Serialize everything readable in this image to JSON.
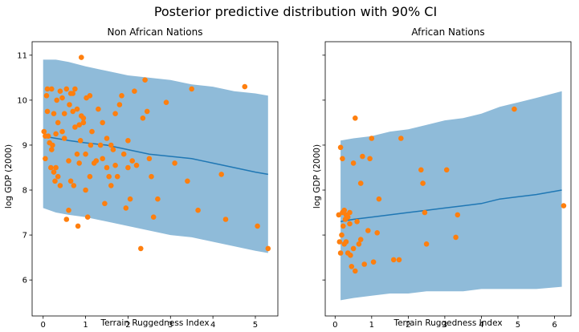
{
  "suptitle": "Posterior predictive distribution with 90% CI",
  "colors": {
    "band": "#1f77b4",
    "mean": "#1f77b4",
    "points": "#ff7f0e",
    "axis": "#000000"
  },
  "chart_data": [
    {
      "type": "scatter",
      "title": "Non African Nations",
      "xlabel": "Terrain Ruggedness Index",
      "ylabel": "log GDP (2000)",
      "xlim": [
        -0.26,
        5.53
      ],
      "ylim": [
        5.2,
        11.3
      ],
      "xticks": [
        0,
        1,
        2,
        3,
        4,
        5
      ],
      "yticks": [
        6,
        7,
        8,
        9,
        10,
        11
      ],
      "series": [
        {
          "kind": "ci_band",
          "x": [
            0.0,
            0.3,
            0.6,
            1.0,
            1.5,
            2.0,
            2.5,
            3.0,
            3.5,
            4.0,
            4.5,
            5.0,
            5.3
          ],
          "lower": [
            7.6,
            7.5,
            7.45,
            7.4,
            7.3,
            7.2,
            7.1,
            7.0,
            6.95,
            6.85,
            6.75,
            6.65,
            6.6
          ],
          "upper": [
            10.9,
            10.9,
            10.85,
            10.75,
            10.65,
            10.55,
            10.5,
            10.45,
            10.35,
            10.3,
            10.2,
            10.15,
            10.1
          ]
        },
        {
          "kind": "mean_line",
          "x": [
            0.0,
            0.3,
            0.6,
            1.0,
            1.5,
            2.0,
            2.5,
            3.0,
            3.5,
            4.0,
            4.5,
            5.0,
            5.3
          ],
          "y": [
            9.2,
            9.15,
            9.1,
            9.05,
            9.0,
            8.9,
            8.8,
            8.75,
            8.7,
            8.6,
            8.5,
            8.4,
            8.35
          ]
        },
        {
          "kind": "points",
          "x": [
            0.02,
            0.05,
            0.05,
            0.08,
            0.1,
            0.1,
            0.12,
            0.15,
            0.18,
            0.2,
            0.2,
            0.22,
            0.25,
            0.25,
            0.28,
            0.3,
            0.3,
            0.32,
            0.35,
            0.35,
            0.4,
            0.4,
            0.45,
            0.45,
            0.5,
            0.5,
            0.55,
            0.55,
            0.6,
            0.6,
            0.62,
            0.65,
            0.65,
            0.7,
            0.7,
            0.72,
            0.75,
            0.75,
            0.8,
            0.8,
            0.82,
            0.85,
            0.85,
            0.88,
            0.9,
            0.9,
            0.95,
            0.95,
            1.0,
            1.0,
            1.02,
            1.05,
            1.1,
            1.1,
            1.12,
            1.15,
            1.2,
            1.25,
            1.3,
            1.35,
            1.4,
            1.4,
            1.45,
            1.5,
            1.5,
            1.55,
            1.6,
            1.6,
            1.65,
            1.7,
            1.7,
            1.75,
            1.8,
            1.85,
            1.9,
            1.95,
            2.0,
            2.0,
            2.05,
            2.1,
            2.15,
            2.2,
            2.3,
            2.35,
            2.4,
            2.45,
            2.5,
            2.55,
            2.6,
            2.7,
            2.9,
            3.1,
            3.4,
            3.5,
            3.65,
            4.2,
            4.3,
            4.75,
            5.05,
            5.3
          ],
          "y": [
            9.3,
            8.7,
            9.2,
            10.1,
            9.75,
            10.25,
            9.2,
            9.05,
            8.5,
            8.9,
            10.25,
            9.0,
            8.4,
            9.7,
            8.2,
            8.5,
            9.25,
            10.0,
            8.3,
            9.5,
            8.1,
            10.2,
            9.3,
            10.05,
            9.15,
            9.7,
            7.35,
            10.25,
            7.55,
            8.65,
            9.9,
            8.2,
            10.15,
            9.75,
            10.15,
            8.1,
            9.4,
            10.25,
            8.8,
            9.8,
            7.2,
            8.6,
            9.45,
            9.1,
            9.65,
            10.95,
            9.5,
            9.6,
            8.0,
            8.8,
            10.05,
            7.4,
            10.1,
            8.3,
            9.0,
            9.3,
            8.6,
            8.65,
            9.8,
            9.0,
            8.7,
            9.5,
            7.7,
            8.5,
            9.15,
            8.3,
            8.1,
            9.0,
            8.9,
            8.55,
            9.7,
            8.3,
            9.9,
            10.1,
            8.8,
            7.6,
            8.5,
            9.1,
            7.8,
            8.65,
            10.2,
            8.55,
            6.7,
            9.6,
            10.45,
            9.75,
            8.7,
            8.3,
            7.4,
            7.8,
            9.95,
            8.6,
            8.2,
            10.25,
            7.55,
            8.35,
            7.35,
            10.3,
            7.2,
            6.7
          ]
        }
      ]
    },
    {
      "type": "scatter",
      "title": "African Nations",
      "xlabel": "Terrain Ruggedness Index",
      "ylabel": "log GDP (2000)",
      "xlim": [
        -0.27,
        6.45
      ],
      "ylim": [
        5.2,
        11.3
      ],
      "xticks": [
        0,
        1,
        2,
        3,
        4,
        5,
        6
      ],
      "yticks": [
        6,
        7,
        8,
        9,
        10,
        11
      ],
      "series": [
        {
          "kind": "ci_band",
          "x": [
            0.15,
            0.5,
            1.0,
            1.5,
            2.0,
            2.5,
            3.0,
            3.5,
            4.0,
            4.5,
            5.0,
            5.5,
            6.2
          ],
          "lower": [
            5.55,
            5.6,
            5.65,
            5.7,
            5.7,
            5.75,
            5.75,
            5.75,
            5.8,
            5.8,
            5.8,
            5.8,
            5.85
          ],
          "upper": [
            9.1,
            9.15,
            9.2,
            9.3,
            9.35,
            9.45,
            9.55,
            9.6,
            9.7,
            9.85,
            9.95,
            10.05,
            10.2
          ]
        },
        {
          "kind": "mean_line",
          "x": [
            0.15,
            0.5,
            1.0,
            1.5,
            2.0,
            2.5,
            3.0,
            3.5,
            4.0,
            4.5,
            5.0,
            5.5,
            6.2
          ],
          "y": [
            7.3,
            7.35,
            7.4,
            7.45,
            7.5,
            7.55,
            7.6,
            7.65,
            7.7,
            7.8,
            7.85,
            7.9,
            8.0
          ]
        },
        {
          "kind": "points",
          "x": [
            0.1,
            0.12,
            0.15,
            0.15,
            0.18,
            0.2,
            0.2,
            0.22,
            0.25,
            0.25,
            0.28,
            0.3,
            0.3,
            0.35,
            0.35,
            0.4,
            0.4,
            0.42,
            0.45,
            0.5,
            0.5,
            0.55,
            0.55,
            0.6,
            0.65,
            0.7,
            0.7,
            0.75,
            0.8,
            0.9,
            0.95,
            1.0,
            1.05,
            1.15,
            1.2,
            1.6,
            1.75,
            1.8,
            2.35,
            2.4,
            2.45,
            2.5,
            3.05,
            3.3,
            3.35,
            4.9,
            6.25
          ],
          "y": [
            7.45,
            6.85,
            6.6,
            8.95,
            7.0,
            8.7,
            7.5,
            7.2,
            6.8,
            7.55,
            7.35,
            6.85,
            7.45,
            6.6,
            7.4,
            7.25,
            7.5,
            6.55,
            6.3,
            6.7,
            8.6,
            6.2,
            9.6,
            7.3,
            6.8,
            6.9,
            8.15,
            8.75,
            6.35,
            7.1,
            8.7,
            9.15,
            6.4,
            7.05,
            7.8,
            6.45,
            6.45,
            9.15,
            8.45,
            8.15,
            7.5,
            6.8,
            8.45,
            6.95,
            7.45,
            9.8,
            7.65
          ]
        }
      ]
    }
  ]
}
